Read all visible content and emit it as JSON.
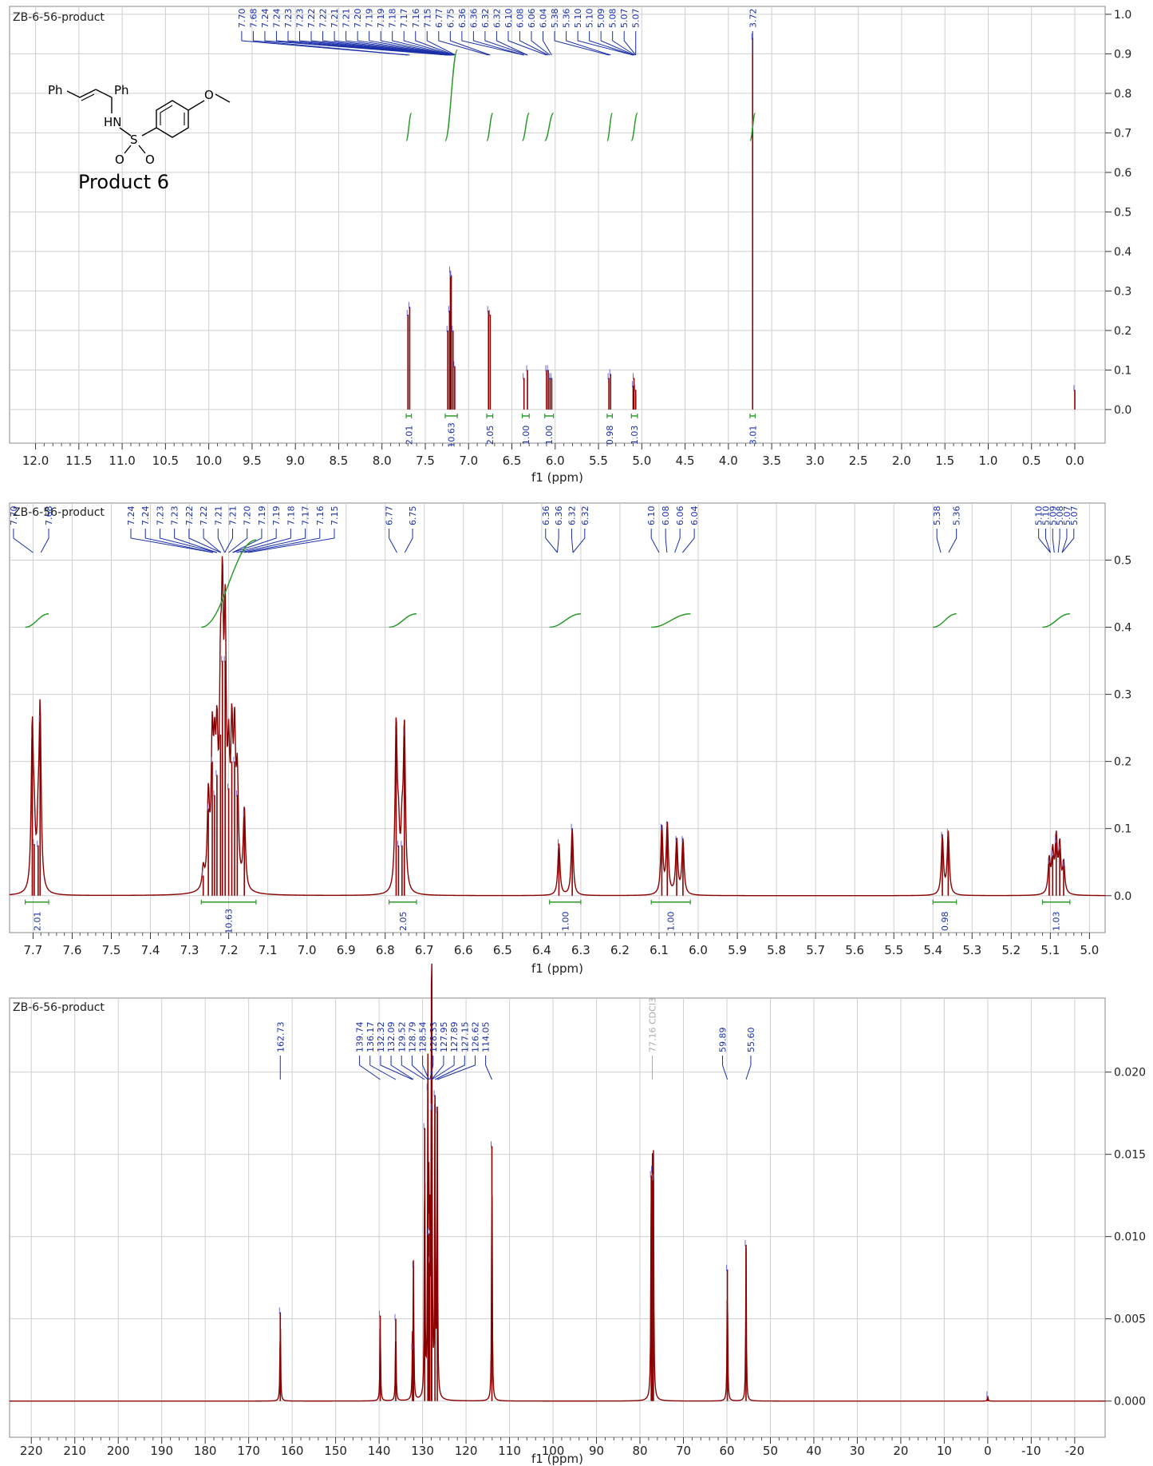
{
  "chart_data": [
    {
      "type": "line",
      "title": "ZB-6-56-product",
      "xlabel": "f1 (ppm)",
      "ylabel": "",
      "xlim": [
        12.3,
        -0.35
      ],
      "ylim": [
        -0.085,
        1.02
      ],
      "x_reversed": true,
      "x_ticks": [
        "12.0",
        "11.5",
        "11.0",
        "10.5",
        "10.0",
        "9.5",
        "9.0",
        "8.5",
        "8.0",
        "7.5",
        "7.0",
        "6.5",
        "6.0",
        "5.5",
        "5.0",
        "4.5",
        "4.0",
        "3.5",
        "3.0",
        "2.5",
        "2.0",
        "1.5",
        "1.0",
        "0.5",
        "0.0"
      ],
      "y_ticks": [
        "1.0",
        "0.9",
        "0.8",
        "0.7",
        "0.6",
        "0.5",
        "0.4",
        "0.3",
        "0.2",
        "0.1",
        "0.0"
      ],
      "peak_labels": [
        "7.70",
        "7.68",
        "7.24",
        "7.24",
        "7.23",
        "7.23",
        "7.22",
        "7.22",
        "7.21",
        "7.21",
        "7.20",
        "7.19",
        "7.19",
        "7.18",
        "7.17",
        "7.16",
        "7.15",
        "6.77",
        "6.75",
        "6.36",
        "6.36",
        "6.32",
        "6.32",
        "6.10",
        "6.08",
        "6.06",
        "6.04",
        "5.38",
        "5.36",
        "5.10",
        "5.10",
        "5.09",
        "5.08",
        "5.07",
        "5.07",
        "3.72"
      ],
      "peaks": [
        {
          "x": 7.7,
          "y": 0.24
        },
        {
          "x": 7.68,
          "y": 0.26
        },
        {
          "x": 7.24,
          "y": 0.2
        },
        {
          "x": 7.22,
          "y": 0.25
        },
        {
          "x": 7.21,
          "y": 0.35
        },
        {
          "x": 7.2,
          "y": 0.34
        },
        {
          "x": 7.18,
          "y": 0.2
        },
        {
          "x": 7.16,
          "y": 0.11
        },
        {
          "x": 6.77,
          "y": 0.25
        },
        {
          "x": 6.75,
          "y": 0.24
        },
        {
          "x": 6.36,
          "y": 0.08
        },
        {
          "x": 6.32,
          "y": 0.1
        },
        {
          "x": 6.1,
          "y": 0.1
        },
        {
          "x": 6.08,
          "y": 0.1
        },
        {
          "x": 6.06,
          "y": 0.08
        },
        {
          "x": 6.04,
          "y": 0.08
        },
        {
          "x": 5.38,
          "y": 0.08
        },
        {
          "x": 5.36,
          "y": 0.09
        },
        {
          "x": 5.1,
          "y": 0.06
        },
        {
          "x": 5.09,
          "y": 0.08
        },
        {
          "x": 5.07,
          "y": 0.05
        },
        {
          "x": 3.72,
          "y": 0.94
        },
        {
          "x": 0.0,
          "y": 0.05
        }
      ],
      "integrals": [
        {
          "value": "2.01",
          "from": 7.72,
          "to": 7.66
        },
        {
          "value": "10.63",
          "from": 7.27,
          "to": 7.13
        },
        {
          "value": "2.05",
          "from": 6.79,
          "to": 6.72
        },
        {
          "value": "1.00",
          "from": 6.38,
          "to": 6.3
        },
        {
          "value": "1.00",
          "from": 6.12,
          "to": 6.02
        },
        {
          "value": "0.98",
          "from": 5.4,
          "to": 5.34
        },
        {
          "value": "1.03",
          "from": 5.12,
          "to": 5.05
        },
        {
          "value": "3.01",
          "from": 3.75,
          "to": 3.69
        }
      ],
      "annotation": "Product 6",
      "structure_labels": [
        "Ph",
        "Ph",
        "HN",
        "S",
        "O",
        "O",
        "O"
      ]
    },
    {
      "type": "line",
      "title": "ZB-6-56-product",
      "xlabel": "f1 (ppm)",
      "ylabel": "",
      "xlim": [
        7.76,
        4.96
      ],
      "ylim": [
        -0.055,
        0.585
      ],
      "x_reversed": true,
      "x_ticks": [
        "7.7",
        "7.6",
        "7.5",
        "7.4",
        "7.3",
        "7.2",
        "7.1",
        "7.0",
        "6.9",
        "6.8",
        "6.7",
        "6.6",
        "6.5",
        "6.4",
        "6.3",
        "6.2",
        "6.1",
        "6.0",
        "5.9",
        "5.8",
        "5.7",
        "5.6",
        "5.5",
        "5.4",
        "5.3",
        "5.2",
        "5.1",
        "5.0"
      ],
      "y_ticks": [
        "0.5",
        "0.4",
        "0.3",
        "0.2",
        "0.1",
        "0.0"
      ],
      "peak_label_groups": [
        [
          "7.70",
          "7.68"
        ],
        [
          "7.24",
          "7.24",
          "7.23",
          "7.23",
          "7.22",
          "7.22",
          "7.21",
          "7.21",
          "7.20",
          "7.19",
          "7.19",
          "7.18",
          "7.17",
          "7.16",
          "7.15"
        ],
        [
          "6.77",
          "6.75"
        ],
        [
          "6.36",
          "6.36",
          "6.32",
          "6.32"
        ],
        [
          "6.10",
          "6.08",
          "6.06",
          "6.04"
        ],
        [
          "5.38",
          "5.36"
        ],
        [
          "5.10",
          "5.10",
          "5.09",
          "5.08",
          "5.07",
          "5.07"
        ]
      ],
      "peaks": [
        {
          "x": 7.702,
          "y": 0.237
        },
        {
          "x": 7.697,
          "y": 0.077
        },
        {
          "x": 7.687,
          "y": 0.075
        },
        {
          "x": 7.682,
          "y": 0.262
        },
        {
          "x": 7.265,
          "y": 0.03
        },
        {
          "x": 7.252,
          "y": 0.13
        },
        {
          "x": 7.242,
          "y": 0.2
        },
        {
          "x": 7.236,
          "y": 0.15
        },
        {
          "x": 7.23,
          "y": 0.18
        },
        {
          "x": 7.221,
          "y": 0.24
        },
        {
          "x": 7.216,
          "y": 0.35
        },
        {
          "x": 7.209,
          "y": 0.35
        },
        {
          "x": 7.2,
          "y": 0.16
        },
        {
          "x": 7.192,
          "y": 0.2
        },
        {
          "x": 7.185,
          "y": 0.2
        },
        {
          "x": 7.178,
          "y": 0.15
        },
        {
          "x": 7.16,
          "y": 0.12
        },
        {
          "x": 6.772,
          "y": 0.245
        },
        {
          "x": 6.766,
          "y": 0.075
        },
        {
          "x": 6.757,
          "y": 0.075
        },
        {
          "x": 6.751,
          "y": 0.24
        },
        {
          "x": 6.356,
          "y": 0.077
        },
        {
          "x": 6.322,
          "y": 0.1
        },
        {
          "x": 6.093,
          "y": 0.1
        },
        {
          "x": 6.079,
          "y": 0.104
        },
        {
          "x": 6.055,
          "y": 0.082
        },
        {
          "x": 6.039,
          "y": 0.082
        },
        {
          "x": 5.376,
          "y": 0.088
        },
        {
          "x": 5.361,
          "y": 0.093
        },
        {
          "x": 5.103,
          "y": 0.05
        },
        {
          "x": 5.094,
          "y": 0.06
        },
        {
          "x": 5.085,
          "y": 0.08
        },
        {
          "x": 5.076,
          "y": 0.07
        },
        {
          "x": 5.066,
          "y": 0.045
        }
      ],
      "integrals": [
        {
          "value": "2.01",
          "from": 7.72,
          "to": 7.66
        },
        {
          "value": "10.63",
          "from": 7.27,
          "to": 7.13
        },
        {
          "value": "2.05",
          "from": 6.79,
          "to": 6.72
        },
        {
          "value": "1.00",
          "from": 6.38,
          "to": 6.3
        },
        {
          "value": "1.00",
          "from": 6.12,
          "to": 6.02
        },
        {
          "value": "0.98",
          "from": 5.4,
          "to": 5.34
        },
        {
          "value": "1.03",
          "from": 5.12,
          "to": 5.05
        }
      ]
    },
    {
      "type": "line",
      "title": "ZB-6-56-product",
      "xlabel": "f1 (ppm)",
      "ylabel": "",
      "xlim": [
        225,
        -27
      ],
      "ylim": [
        -0.0022,
        0.0245
      ],
      "x_reversed": true,
      "x_ticks": [
        "220",
        "210",
        "200",
        "190",
        "180",
        "170",
        "160",
        "150",
        "140",
        "130",
        "120",
        "110",
        "100",
        "90",
        "80",
        "70",
        "60",
        "50",
        "40",
        "30",
        "20",
        "10",
        "0",
        "-10",
        "-20"
      ],
      "y_ticks": [
        "0.020",
        "0.015",
        "0.010",
        "0.005",
        "0.000"
      ],
      "peak_labels": [
        "162.73",
        "139.74",
        "136.17",
        "132.32",
        "132.09",
        "129.52",
        "128.79",
        "128.54",
        "128.33",
        "127.95",
        "127.89",
        "127.15",
        "126.62",
        "114.05",
        "59.89",
        "55.60"
      ],
      "solvent_label": "77.16 CDCl3",
      "peaks": [
        {
          "x": 162.73,
          "y": 0.0054
        },
        {
          "x": 139.74,
          "y": 0.0052
        },
        {
          "x": 136.17,
          "y": 0.005
        },
        {
          "x": 132.32,
          "y": 0.0032
        },
        {
          "x": 132.09,
          "y": 0.0082
        },
        {
          "x": 129.52,
          "y": 0.0166
        },
        {
          "x": 128.79,
          "y": 0.019
        },
        {
          "x": 128.54,
          "y": 0.0102
        },
        {
          "x": 128.33,
          "y": 0.0085
        },
        {
          "x": 127.95,
          "y": 0.0168
        },
        {
          "x": 127.89,
          "y": 0.0178
        },
        {
          "x": 127.15,
          "y": 0.0186
        },
        {
          "x": 126.62,
          "y": 0.0176
        },
        {
          "x": 114.05,
          "y": 0.0155
        },
        {
          "x": 77.4,
          "y": 0.0137
        },
        {
          "x": 77.16,
          "y": 0.014
        },
        {
          "x": 76.9,
          "y": 0.0135
        },
        {
          "x": 59.89,
          "y": 0.008
        },
        {
          "x": 55.6,
          "y": 0.0095
        },
        {
          "x": 0.0,
          "y": 0.0003
        }
      ]
    }
  ]
}
